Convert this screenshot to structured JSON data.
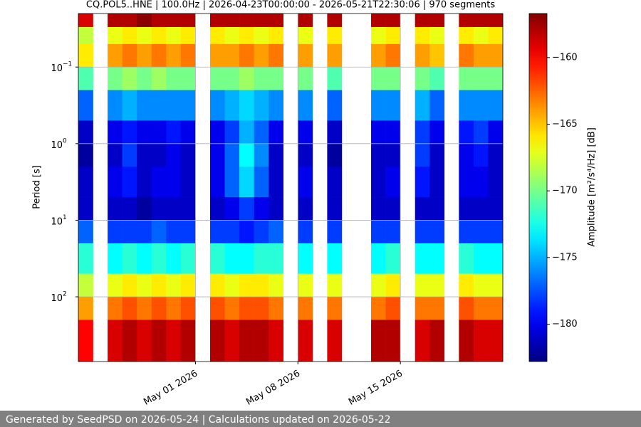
{
  "chart_data": {
    "type": "heatmap",
    "title": "CQ.POL5..HNE | 100.0Hz | 2026-04-23T00:00:00 - 2026-05-21T22:30:06 | 970 segments",
    "y_label": "Period [s]",
    "colorbar_label": "Amplitude [m²/s⁴/Hz] [dB]",
    "x": [
      "2026-04-23",
      "2026-04-24",
      "2026-04-25",
      "2026-04-26",
      "2026-04-27",
      "2026-04-28",
      "2026-04-29",
      "2026-04-30",
      "2026-05-01",
      "2026-05-02",
      "2026-05-03",
      "2026-05-04",
      "2026-05-05",
      "2026-05-06",
      "2026-05-07",
      "2026-05-08",
      "2026-05-09",
      "2026-05-10",
      "2026-05-11",
      "2026-05-12",
      "2026-05-13",
      "2026-05-14",
      "2026-05-15",
      "2026-05-16",
      "2026-05-17",
      "2026-05-18",
      "2026-05-19",
      "2026-05-20",
      "2026-05-21"
    ],
    "xlim": [
      "2026-04-23",
      "2026-05-22"
    ],
    "xticks": [
      {
        "value": "2026-05-01",
        "label": "May 01 2026"
      },
      {
        "value": "2026-05-08",
        "label": "May 08 2026"
      },
      {
        "value": "2026-05-15",
        "label": "May 15 2026"
      }
    ],
    "y_edges": [
      0.02,
      0.03,
      0.05,
      0.1,
      0.2,
      0.5,
      1,
      2,
      5,
      10,
      20,
      50,
      100,
      200,
      700
    ],
    "ylim": [
      0.02,
      700
    ],
    "y_log": true,
    "y_inverted": true,
    "yticks": [
      {
        "value": 0.1,
        "label": "10",
        "exponent": "−1"
      },
      {
        "value": 1,
        "label": "10",
        "exponent": "0"
      },
      {
        "value": 10,
        "label": "10",
        "exponent": "1"
      },
      {
        "value": 100,
        "label": "10",
        "exponent": "2"
      }
    ],
    "grid": true,
    "colormap": "jet",
    "clim": [
      -182.8,
      -156.7
    ],
    "cticks": [
      {
        "value": -180,
        "label": "−180"
      },
      {
        "value": -175,
        "label": "−175"
      },
      {
        "value": -170,
        "label": "−170"
      },
      {
        "value": -165,
        "label": "−165"
      },
      {
        "value": -160,
        "label": "−160"
      }
    ],
    "values": [
      [
        -159,
        -168,
        -166,
        -171,
        -177,
        -181,
        -182,
        -181,
        -181,
        -177,
        -172,
        -168,
        -164,
        -160
      ],
      null,
      [
        -158,
        -167,
        -164,
        -170,
        -176,
        -180,
        -181,
        -180,
        -181,
        -178,
        -173,
        -167,
        -163,
        -159
      ],
      [
        -158,
        -166,
        -163,
        -169,
        -175,
        -179,
        -178,
        -179,
        -181,
        -178,
        -172,
        -166,
        -162,
        -158
      ],
      [
        -157,
        -167,
        -164,
        -170,
        -176,
        -180,
        -181,
        -181,
        -182,
        -178,
        -173,
        -167,
        -163,
        -159
      ],
      [
        -158,
        -166,
        -163,
        -169,
        -176,
        -180,
        -181,
        -180,
        -181,
        -177,
        -172,
        -166,
        -162,
        -158
      ],
      [
        -158,
        -167,
        -164,
        -170,
        -176,
        -179,
        -180,
        -180,
        -181,
        -178,
        -173,
        -167,
        -163,
        -159
      ],
      [
        -158,
        -166,
        -163,
        -170,
        -176,
        -180,
        -181,
        -181,
        -181,
        -178,
        -172,
        -166,
        -162,
        -158
      ],
      null,
      [
        -158,
        -166,
        -164,
        -170,
        -176,
        -180,
        -180,
        -180,
        -181,
        -178,
        -172,
        -166,
        -162,
        -158
      ],
      [
        -158,
        -167,
        -164,
        -170,
        -175,
        -178,
        -177,
        -177,
        -180,
        -178,
        -173,
        -167,
        -163,
        -159
      ],
      [
        -158,
        -166,
        -163,
        -169,
        -174,
        -175,
        -173,
        -174,
        -178,
        -179,
        -173,
        -166,
        -162,
        -158
      ],
      [
        -158,
        -167,
        -164,
        -170,
        -175,
        -177,
        -176,
        -177,
        -180,
        -178,
        -172,
        -166,
        -162,
        -158
      ],
      [
        -158,
        -166,
        -163,
        -170,
        -176,
        -180,
        -181,
        -181,
        -181,
        -177,
        -172,
        -167,
        -163,
        -159
      ],
      null,
      [
        -158,
        -167,
        -164,
        -170,
        -176,
        -180,
        -181,
        -180,
        -181,
        -178,
        -173,
        -167,
        -163,
        -159
      ],
      null,
      [
        -158,
        -166,
        -164,
        -171,
        -177,
        -181,
        -182,
        -181,
        -181,
        -178,
        -173,
        -167,
        -163,
        -159
      ],
      null,
      null,
      [
        -158,
        -167,
        -164,
        -170,
        -176,
        -180,
        -181,
        -181,
        -181,
        -178,
        -173,
        -167,
        -163,
        -158
      ],
      [
        -158,
        -166,
        -163,
        -170,
        -176,
        -180,
        -181,
        -180,
        -181,
        -178,
        -172,
        -166,
        -162,
        -158
      ],
      null,
      [
        -158,
        -166,
        -164,
        -170,
        -175,
        -178,
        -178,
        -179,
        -181,
        -178,
        -173,
        -167,
        -163,
        -159
      ],
      [
        -158,
        -167,
        -165,
        -171,
        -177,
        -180,
        -181,
        -181,
        -181,
        -178,
        -173,
        -167,
        -163,
        -158
      ],
      null,
      [
        -158,
        -166,
        -163,
        -170,
        -176,
        -179,
        -180,
        -180,
        -181,
        -178,
        -172,
        -166,
        -162,
        -158
      ],
      [
        -158,
        -167,
        -164,
        -170,
        -176,
        -178,
        -179,
        -180,
        -181,
        -178,
        -173,
        -167,
        -163,
        -159
      ],
      [
        -158,
        -166,
        -164,
        -170,
        -176,
        -180,
        -181,
        -181,
        -181,
        -178,
        -173,
        -167,
        -163,
        -159
      ]
    ]
  },
  "footer": "Generated by SeedPSD on 2026-05-24 | Calculations updated on 2026-05-22"
}
